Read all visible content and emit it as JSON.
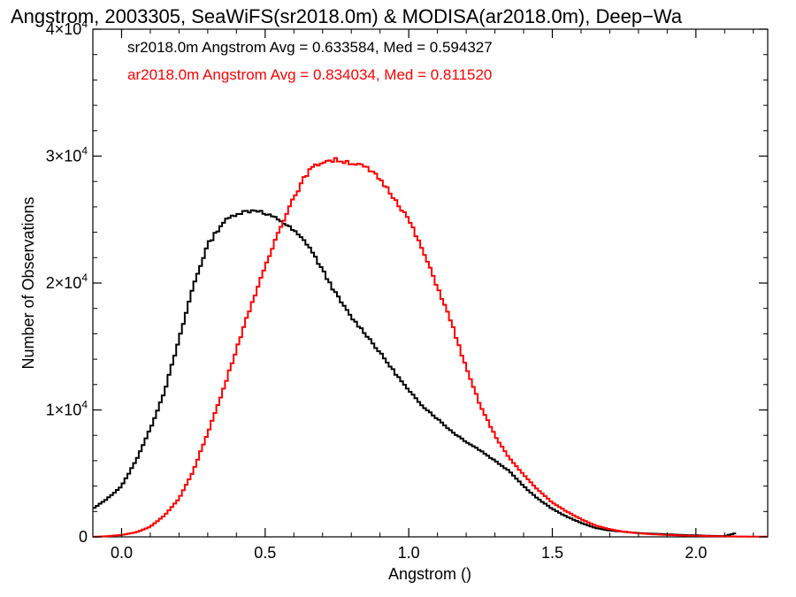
{
  "chart_data": {
    "type": "histogram",
    "title": "Angstrom, 2003305, SeaWiFS(sr2018.0m) & MODISA(ar2018.0m), Deep−Wa",
    "xlabel": "Angstrom ()",
    "ylabel": "Number of Observations",
    "xlim": [
      -0.1,
      2.25
    ],
    "ylim": [
      0,
      40000
    ],
    "x_ticks": [
      {
        "value": 0.0,
        "label": "0.0"
      },
      {
        "value": 0.5,
        "label": "0.5"
      },
      {
        "value": 1.0,
        "label": "1.0"
      },
      {
        "value": 1.5,
        "label": "1.5"
      },
      {
        "value": 2.0,
        "label": "2.0"
      }
    ],
    "y_ticks": [
      {
        "value": 0,
        "label": "0",
        "exp": ""
      },
      {
        "value": 10000,
        "label": "1×10",
        "exp": "4"
      },
      {
        "value": 20000,
        "label": "2×10",
        "exp": "4"
      },
      {
        "value": 30000,
        "label": "3×10",
        "exp": "4"
      },
      {
        "value": 40000,
        "label": "4×10",
        "exp": "4"
      }
    ],
    "bin_width": 0.01,
    "series": [
      {
        "name": "sr2018.0m",
        "label": "sr2018.0m Angstrom Avg = 0.633584, Med = 0.594327",
        "color": "#000000",
        "x": [
          -0.1,
          -0.05,
          0.0,
          0.05,
          0.1,
          0.15,
          0.2,
          0.25,
          0.3,
          0.35,
          0.4,
          0.45,
          0.47,
          0.5,
          0.55,
          0.6,
          0.65,
          0.7,
          0.75,
          0.8,
          0.85,
          0.9,
          0.95,
          1.0,
          1.05,
          1.1,
          1.15,
          1.2,
          1.25,
          1.3,
          1.35,
          1.4,
          1.45,
          1.5,
          1.55,
          1.6,
          1.65,
          1.7,
          1.75,
          1.8,
          1.85,
          1.9,
          1.95,
          2.0,
          2.05,
          2.1,
          2.14
        ],
        "values": [
          2200,
          3000,
          4000,
          6000,
          8500,
          11500,
          15500,
          19800,
          23000,
          24700,
          25500,
          25700,
          25800,
          25400,
          25000,
          24100,
          23000,
          21000,
          19000,
          17300,
          16000,
          14500,
          13000,
          11500,
          10300,
          9300,
          8300,
          7500,
          6800,
          6000,
          5200,
          4000,
          3000,
          2200,
          1600,
          1100,
          700,
          500,
          400,
          300,
          250,
          200,
          150,
          120,
          80,
          60,
          300
        ]
      },
      {
        "name": "ar2018.0m",
        "label": "ar2018.0m Angstrom Avg = 0.834034, Med = 0.811520",
        "color": "#ff0000",
        "x": [
          -0.1,
          -0.05,
          0.0,
          0.05,
          0.1,
          0.15,
          0.2,
          0.25,
          0.3,
          0.35,
          0.4,
          0.45,
          0.5,
          0.55,
          0.6,
          0.65,
          0.7,
          0.75,
          0.8,
          0.85,
          0.9,
          0.95,
          1.0,
          1.05,
          1.1,
          1.15,
          1.2,
          1.25,
          1.3,
          1.35,
          1.4,
          1.45,
          1.5,
          1.55,
          1.6,
          1.65,
          1.7,
          1.75,
          1.8,
          1.85,
          1.9,
          1.95,
          2.0,
          2.05,
          2.1,
          2.15,
          2.2,
          2.25
        ],
        "values": [
          0,
          50,
          150,
          350,
          800,
          1700,
          3000,
          5200,
          8200,
          11300,
          14800,
          18200,
          21200,
          24300,
          26800,
          28800,
          29600,
          29700,
          29500,
          29100,
          28200,
          26700,
          25000,
          22500,
          19700,
          16800,
          13300,
          10300,
          8000,
          6200,
          4900,
          3700,
          2700,
          2000,
          1400,
          900,
          600,
          400,
          280,
          200,
          150,
          110,
          80,
          60,
          40,
          30,
          20,
          10
        ]
      }
    ]
  }
}
